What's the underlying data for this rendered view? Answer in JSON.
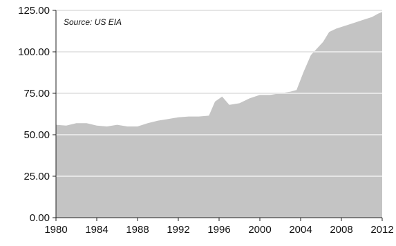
{
  "chart_data": {
    "type": "area",
    "title": "",
    "xlabel": "",
    "ylabel": "",
    "annotation": "Source: US EIA",
    "xlim": [
      1980,
      2012
    ],
    "ylim": [
      0,
      125
    ],
    "x_ticks": [
      "1980",
      "1984",
      "1988",
      "1992",
      "1996",
      "2000",
      "2004",
      "2008",
      "2012"
    ],
    "y_ticks": [
      "125.00",
      "100.00",
      "75.00",
      "50.00",
      "25.00",
      "0.00"
    ],
    "grid": "horizontal",
    "legend": "none",
    "series": [
      {
        "color": "#c4c4c4",
        "x": [
          1980,
          1981,
          1982,
          1983,
          1984,
          1985,
          1986,
          1987,
          1988,
          1989,
          1990,
          1991,
          1992,
          1993,
          1994,
          1995,
          1995.6,
          1996.3,
          1997,
          1998,
          1999,
          2000,
          2001,
          2002,
          2003,
          2003.6,
          2004.3,
          2005,
          2005.6,
          2006.2,
          2006.8,
          2007.5,
          2008,
          2009,
          2010,
          2011,
          2011.6,
          2012
        ],
        "values": [
          56,
          55.5,
          57,
          57,
          55.5,
          55,
          56,
          55,
          55,
          57,
          58.5,
          59.5,
          60.5,
          61,
          61,
          61.5,
          70,
          73,
          68,
          69,
          72,
          74,
          74,
          75,
          76,
          77,
          88,
          98,
          102,
          106,
          112,
          114,
          115,
          117,
          119,
          121,
          123,
          124
        ]
      }
    ]
  }
}
